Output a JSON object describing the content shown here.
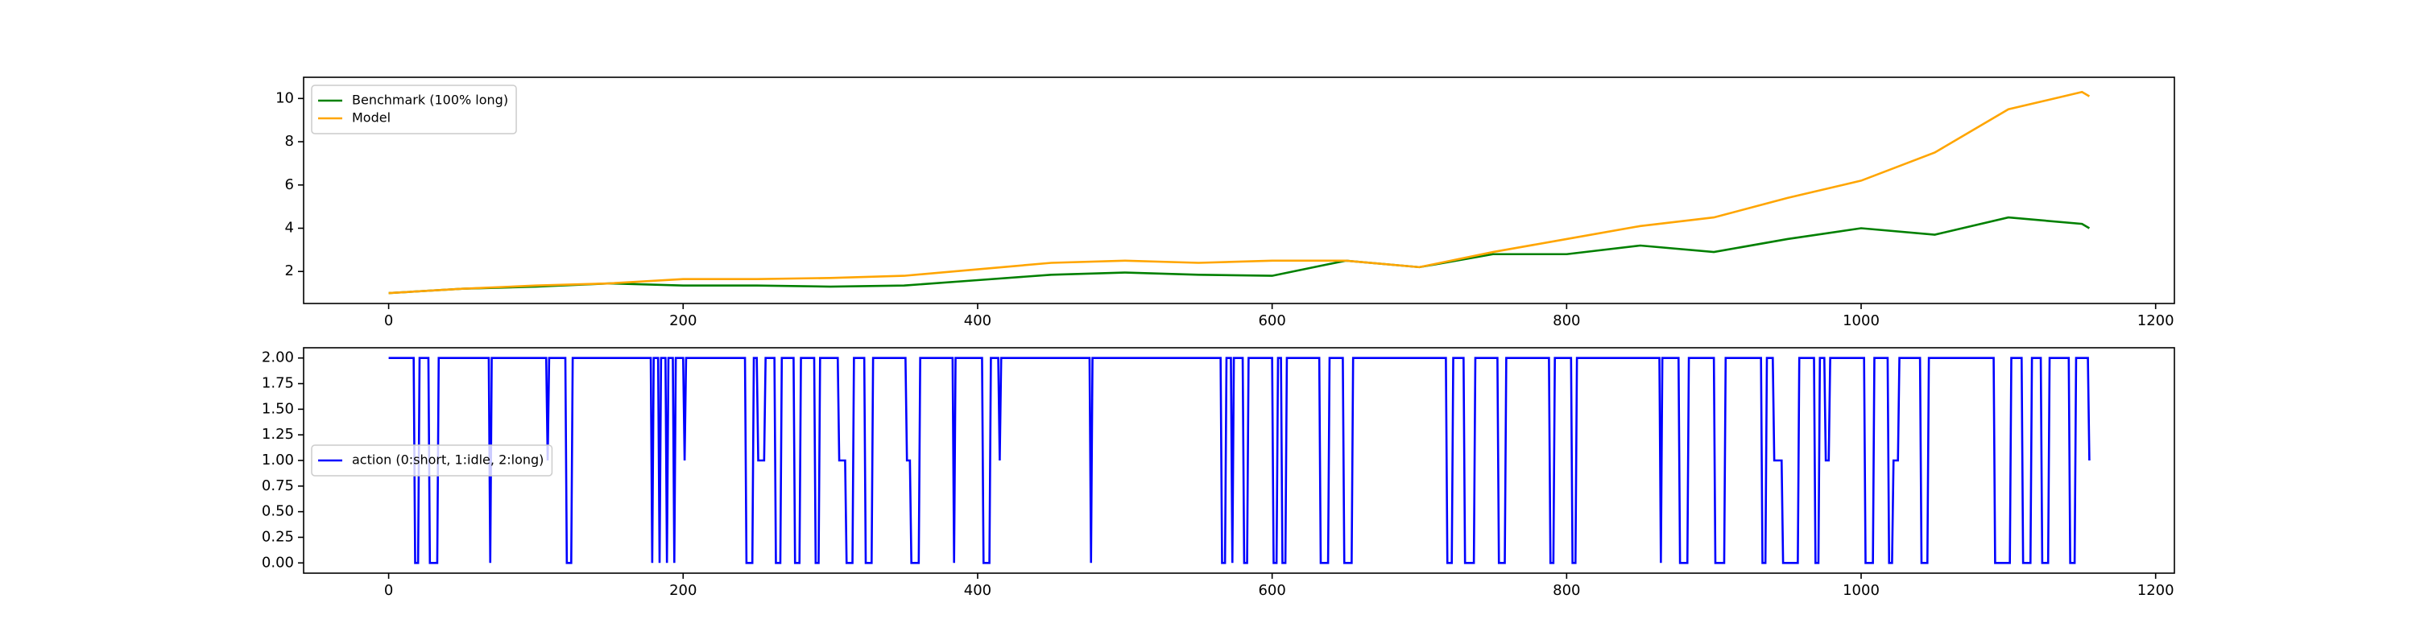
{
  "chart_data": [
    {
      "type": "line",
      "legend": "upper left",
      "x": [
        0,
        50,
        100,
        150,
        200,
        250,
        300,
        350,
        400,
        450,
        500,
        550,
        600,
        650,
        700,
        750,
        800,
        850,
        900,
        950,
        1000,
        1050,
        1100,
        1150,
        1155
      ],
      "series": [
        {
          "name": "Benchmark (100% long)",
          "color": "green",
          "values": [
            1.0,
            1.2,
            1.3,
            1.45,
            1.35,
            1.35,
            1.3,
            1.35,
            1.6,
            1.85,
            1.95,
            1.85,
            1.8,
            2.5,
            2.2,
            2.8,
            2.8,
            3.2,
            2.9,
            3.5,
            4.0,
            3.7,
            4.5,
            4.2,
            4.0
          ]
        },
        {
          "name": "Model",
          "color": "orange",
          "values": [
            1.0,
            1.2,
            1.35,
            1.45,
            1.65,
            1.65,
            1.7,
            1.8,
            2.1,
            2.4,
            2.5,
            2.4,
            2.5,
            2.5,
            2.2,
            2.9,
            3.5,
            4.1,
            4.5,
            5.4,
            6.2,
            7.5,
            9.5,
            10.3,
            10.1
          ]
        }
      ],
      "xlim": [
        -57.75,
        1212.75
      ],
      "ylim": [
        0.52,
        10.98
      ],
      "xticks": [
        0,
        200,
        400,
        600,
        800,
        1000,
        1200
      ],
      "yticks": [
        2,
        4,
        6,
        8,
        10
      ]
    },
    {
      "type": "line",
      "legend": "center left",
      "x": [
        0,
        17,
        18,
        20,
        21,
        27,
        28,
        33,
        34,
        68,
        69,
        70,
        107,
        108,
        109,
        120,
        121,
        124,
        125,
        178,
        179,
        180,
        183,
        184,
        185,
        188,
        189,
        190,
        193,
        194,
        195,
        200,
        201,
        202,
        242,
        243,
        247,
        248,
        250,
        251,
        255,
        256,
        262,
        263,
        266,
        267,
        275,
        276,
        279,
        280,
        289,
        290,
        292,
        293,
        305,
        306,
        310,
        311,
        315,
        316,
        323,
        324,
        328,
        329,
        351,
        352,
        354,
        355,
        360,
        361,
        383,
        384,
        385,
        403,
        404,
        408,
        409,
        414,
        415,
        416,
        476,
        477,
        478,
        565,
        566,
        568,
        569,
        572,
        573,
        574,
        580,
        581,
        583,
        584,
        600,
        601,
        603,
        604,
        606,
        607,
        609,
        610,
        632,
        633,
        638,
        639,
        648,
        649,
        654,
        655,
        718,
        719,
        722,
        723,
        730,
        731,
        737,
        738,
        753,
        754,
        758,
        759,
        788,
        789,
        791,
        792,
        803,
        804,
        806,
        807,
        863,
        864,
        865,
        876,
        877,
        882,
        883,
        900,
        901,
        907,
        908,
        932,
        933,
        935,
        936,
        940,
        941,
        946,
        947,
        957,
        958,
        968,
        969,
        971,
        972,
        975,
        976,
        978,
        979,
        1002,
        1003,
        1008,
        1009,
        1018,
        1019,
        1021,
        1022,
        1025,
        1026,
        1040,
        1041,
        1045,
        1046,
        1090,
        1091,
        1101,
        1102,
        1109,
        1110,
        1115,
        1116,
        1122,
        1123,
        1127,
        1128,
        1141,
        1142,
        1145,
        1146,
        1154,
        1155
      ],
      "series": [
        {
          "name": "action (0:short, 1:idle, 2:long)",
          "color": "blue",
          "values": [
            2,
            2,
            0,
            0,
            2,
            2,
            0,
            0,
            2,
            2,
            0,
            2,
            2,
            1,
            2,
            2,
            0,
            0,
            2,
            2,
            0,
            2,
            2,
            0,
            2,
            2,
            0,
            2,
            2,
            0,
            2,
            2,
            1,
            2,
            2,
            0,
            0,
            2,
            2,
            1,
            1,
            2,
            2,
            0,
            0,
            2,
            2,
            0,
            0,
            2,
            2,
            0,
            0,
            2,
            2,
            1,
            1,
            0,
            0,
            2,
            2,
            0,
            0,
            2,
            2,
            1,
            1,
            0,
            0,
            2,
            2,
            0,
            2,
            2,
            0,
            0,
            2,
            2,
            1,
            2,
            2,
            0,
            2,
            2,
            0,
            0,
            2,
            2,
            0,
            2,
            2,
            0,
            0,
            2,
            2,
            0,
            0,
            2,
            2,
            0,
            0,
            2,
            2,
            0,
            0,
            2,
            2,
            0,
            0,
            2,
            2,
            0,
            0,
            2,
            2,
            0,
            0,
            2,
            2,
            0,
            0,
            2,
            2,
            0,
            0,
            2,
            2,
            0,
            0,
            2,
            2,
            0,
            2,
            2,
            0,
            0,
            2,
            2,
            0,
            0,
            2,
            2,
            0,
            0,
            2,
            2,
            1,
            1,
            0,
            0,
            2,
            2,
            0,
            0,
            2,
            2,
            1,
            1,
            2,
            2,
            0,
            0,
            2,
            2,
            0,
            0,
            1,
            1,
            2,
            2,
            0,
            0,
            2,
            2,
            0,
            0,
            2,
            2,
            0,
            0,
            2,
            2,
            0,
            0,
            2,
            2,
            0,
            0,
            2,
            2,
            1
          ]
        }
      ],
      "xlim": [
        -57.75,
        1212.75
      ],
      "ylim": [
        -0.1,
        2.1
      ],
      "xticks": [
        0,
        200,
        400,
        600,
        800,
        1000,
        1200
      ],
      "yticks": [
        {
          "value": 0,
          "label": "0.00"
        },
        {
          "value": 0.25,
          "label": "0.25"
        },
        {
          "value": 0.5,
          "label": "0.50"
        },
        {
          "value": 0.75,
          "label": "0.75"
        },
        {
          "value": 1,
          "label": "1.00"
        },
        {
          "value": 1.25,
          "label": "1.25"
        },
        {
          "value": 1.5,
          "label": "1.50"
        },
        {
          "value": 1.75,
          "label": "1.75"
        },
        {
          "value": 2,
          "label": "2.00"
        }
      ]
    }
  ]
}
